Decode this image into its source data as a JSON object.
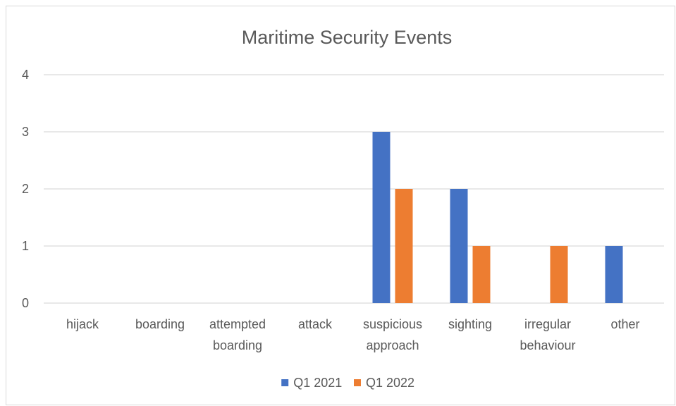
{
  "chart_data": {
    "type": "bar",
    "title": "Maritime Security Events",
    "xlabel": "",
    "ylabel": "",
    "categories": [
      [
        "hijack"
      ],
      [
        "boarding"
      ],
      [
        "attempted",
        "boarding"
      ],
      [
        "attack"
      ],
      [
        "suspicious",
        "approach"
      ],
      [
        "sighting"
      ],
      [
        "irregular",
        "behaviour"
      ],
      [
        "other"
      ]
    ],
    "series": [
      {
        "name": "Q1 2021",
        "color": "#4472c4",
        "values": [
          0,
          0,
          0,
          0,
          3,
          2,
          0,
          1
        ]
      },
      {
        "name": "Q1 2022",
        "color": "#ed7d31",
        "values": [
          0,
          0,
          0,
          0,
          2,
          1,
          1,
          0
        ]
      }
    ],
    "ylim": [
      0,
      4
    ],
    "yticks": [
      "0",
      "1",
      "2",
      "3",
      "4"
    ],
    "grid": true,
    "legend_position": "bottom"
  }
}
